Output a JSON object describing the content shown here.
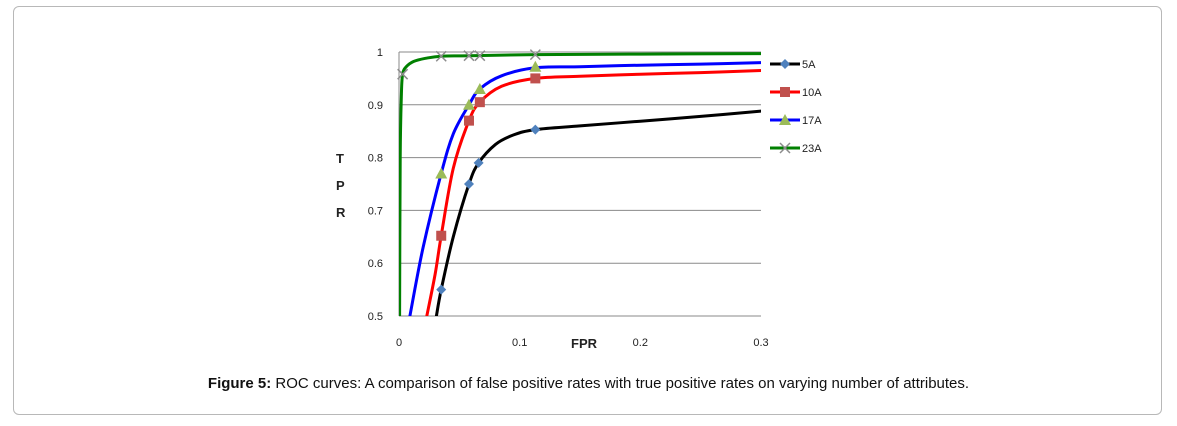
{
  "caption": {
    "label": "Figure 5:",
    "text": " ROC curves: A comparison of false positive rates with true positive rates on varying number of attributes."
  },
  "chart_data": {
    "type": "line",
    "xlabel": "FPR",
    "ylabel": "TPR",
    "ylabel_letters": [
      "T",
      "P",
      "R"
    ],
    "xlim": [
      0,
      0.3
    ],
    "ylim": [
      0.5,
      1
    ],
    "xticks": [
      "0",
      "0.1",
      "0.2",
      "0.3"
    ],
    "yticks": [
      "0.5",
      "0.6",
      "0.7",
      "0.8",
      "0.9",
      "1"
    ],
    "grid": true,
    "legend_position": "right",
    "series": [
      {
        "name": "5A",
        "color": "#000000",
        "marker": "diamond",
        "marker_color": "#4f81bd",
        "markers": [
          [
            0.035,
            0.55
          ],
          [
            0.058,
            0.75
          ],
          [
            0.066,
            0.79
          ],
          [
            0.113,
            0.853
          ]
        ],
        "curve": [
          [
            0.031,
            0.5
          ],
          [
            0.035,
            0.55
          ],
          [
            0.045,
            0.65
          ],
          [
            0.058,
            0.75
          ],
          [
            0.066,
            0.79
          ],
          [
            0.08,
            0.825
          ],
          [
            0.095,
            0.843
          ],
          [
            0.113,
            0.853
          ],
          [
            0.15,
            0.86
          ],
          [
            0.2,
            0.869
          ],
          [
            0.25,
            0.878
          ],
          [
            0.3,
            0.888
          ]
        ]
      },
      {
        "name": "10A",
        "color": "#ff0000",
        "marker": "square",
        "marker_color": "#c0504d",
        "markers": [
          [
            0.035,
            0.652
          ],
          [
            0.058,
            0.87
          ],
          [
            0.067,
            0.905
          ],
          [
            0.113,
            0.95
          ]
        ],
        "curve": [
          [
            0.023,
            0.5
          ],
          [
            0.03,
            0.58
          ],
          [
            0.035,
            0.652
          ],
          [
            0.045,
            0.78
          ],
          [
            0.058,
            0.87
          ],
          [
            0.067,
            0.905
          ],
          [
            0.085,
            0.935
          ],
          [
            0.113,
            0.95
          ],
          [
            0.15,
            0.954
          ],
          [
            0.2,
            0.958
          ],
          [
            0.25,
            0.961
          ],
          [
            0.3,
            0.965
          ]
        ]
      },
      {
        "name": "17A",
        "color": "#0000ff",
        "marker": "triangle",
        "marker_color": "#9bbb59",
        "markers": [
          [
            0.035,
            0.77
          ],
          [
            0.058,
            0.9
          ],
          [
            0.067,
            0.93
          ],
          [
            0.113,
            0.972
          ]
        ],
        "curve": [
          [
            0.009,
            0.5
          ],
          [
            0.02,
            0.63
          ],
          [
            0.035,
            0.77
          ],
          [
            0.045,
            0.845
          ],
          [
            0.058,
            0.9
          ],
          [
            0.067,
            0.93
          ],
          [
            0.085,
            0.955
          ],
          [
            0.113,
            0.97
          ],
          [
            0.15,
            0.972
          ],
          [
            0.2,
            0.975
          ],
          [
            0.25,
            0.977
          ],
          [
            0.3,
            0.98
          ]
        ]
      },
      {
        "name": "23A",
        "color": "#008000",
        "marker": "x",
        "marker_color": "#8c8c8c",
        "markers": [
          [
            0.003,
            0.958
          ],
          [
            0.035,
            0.992
          ],
          [
            0.058,
            0.993
          ],
          [
            0.067,
            0.993
          ],
          [
            0.113,
            0.995
          ]
        ],
        "curve": [
          [
            0.0005,
            0.5
          ],
          [
            0.001,
            0.8
          ],
          [
            0.002,
            0.92
          ],
          [
            0.003,
            0.958
          ],
          [
            0.006,
            0.972
          ],
          [
            0.012,
            0.982
          ],
          [
            0.022,
            0.988
          ],
          [
            0.035,
            0.992
          ],
          [
            0.058,
            0.993
          ],
          [
            0.113,
            0.995
          ],
          [
            0.2,
            0.996
          ],
          [
            0.3,
            0.997
          ]
        ]
      }
    ]
  }
}
